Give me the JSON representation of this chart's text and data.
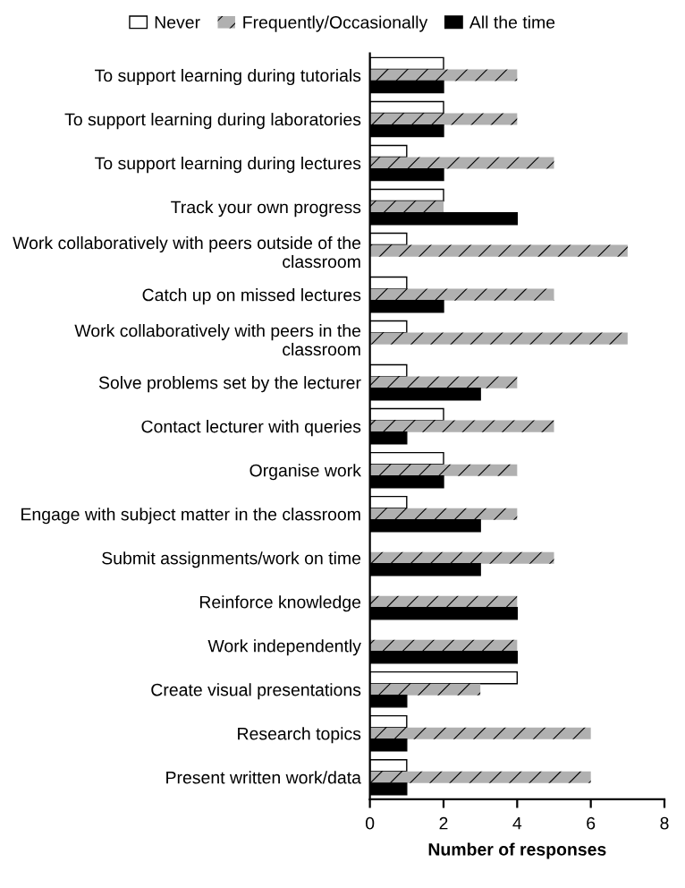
{
  "chart_data": {
    "type": "bar",
    "orientation": "horizontal",
    "xlabel": "Number of responses",
    "legend": "top",
    "categories": [
      "To support learning during tutorials",
      "To support learning during laboratories",
      "To support learning during lectures",
      "Track your own progress",
      "Work collaboratively with peers outside of the\nclassroom",
      "Catch up on missed lectures",
      "Work collaboratively with peers in the\nclassroom",
      "Solve problems set by the lecturer",
      "Contact lecturer with queries",
      "Organise work",
      "Engage with subject matter in the classroom",
      "Submit assignments/work on time",
      "Reinforce knowledge",
      "Work independently",
      "Create visual presentations",
      "Research topics",
      "Present written work/data"
    ],
    "series": [
      {
        "name": "Never",
        "color": "#ffffff",
        "values": [
          2,
          2,
          1,
          2,
          1,
          1,
          1,
          1,
          2,
          2,
          1,
          0,
          0,
          0,
          4,
          1,
          1
        ]
      },
      {
        "name": "Frequently/Occasionally",
        "color": "#b0b0b0",
        "values": [
          4,
          4,
          5,
          2,
          7,
          5,
          7,
          4,
          5,
          4,
          4,
          5,
          4,
          4,
          3,
          6,
          6
        ]
      },
      {
        "name": "All the time",
        "color": "#000000",
        "values": [
          2,
          2,
          2,
          4,
          0,
          2,
          0,
          3,
          1,
          2,
          3,
          3,
          4,
          4,
          1,
          1,
          1
        ]
      }
    ],
    "xlim": [
      0,
      8
    ],
    "xticks": [
      0,
      2,
      4,
      6,
      8
    ],
    "grid": false
  }
}
